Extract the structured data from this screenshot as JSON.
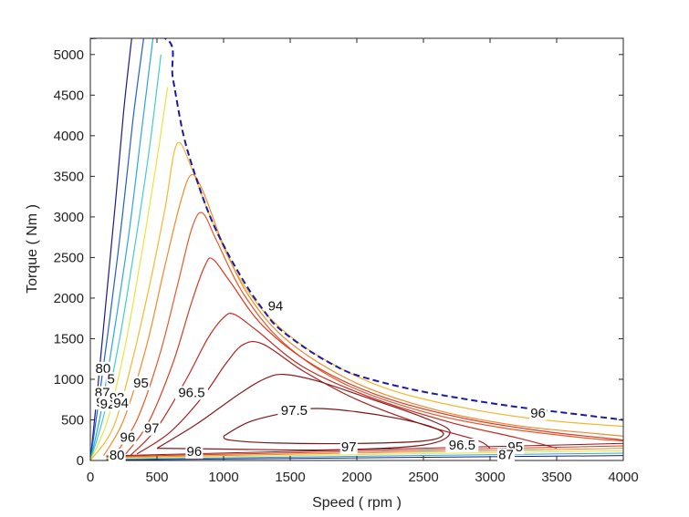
{
  "chart_data": {
    "type": "contour",
    "title": "",
    "xlabel": "Speed ( rpm )",
    "ylabel": "Torque ( Nm )",
    "xlim": [
      0,
      4000
    ],
    "ylim": [
      0,
      5200
    ],
    "xticks": [
      0,
      500,
      1000,
      1500,
      2000,
      2500,
      3000,
      3500,
      4000
    ],
    "yticks": [
      0,
      500,
      1000,
      1500,
      2000,
      2500,
      3000,
      3500,
      4000,
      4500,
      5000
    ],
    "x_tick_labels": [
      "0",
      "500",
      "1000",
      "1500",
      "2000",
      "2500",
      "3000",
      "3500",
      "4000"
    ],
    "y_tick_labels": [
      "0",
      "500",
      "1000",
      "1500",
      "2000",
      "2500",
      "3000",
      "3500",
      "4000",
      "4500",
      "5000"
    ],
    "grid": false,
    "boundary_curve": {
      "style": "dashed",
      "color": "#1a1aa6",
      "x": [
        0,
        560,
        620,
        700,
        800,
        900,
        1000,
        1100,
        1200,
        1300,
        1400,
        1600,
        1800,
        2000,
        2400,
        2800,
        3200,
        3600,
        4000
      ],
      "y": [
        5200,
        5200,
        4700,
        4000,
        3450,
        3000,
        2650,
        2350,
        2080,
        1850,
        1650,
        1400,
        1200,
        1050,
        880,
        760,
        660,
        580,
        500
      ]
    },
    "contours": [
      {
        "level": "80",
        "color": "#1a1a8c",
        "x": [
          0,
          50,
          120,
          190,
          250,
          310
        ],
        "y": [
          0,
          800,
          2000,
          3200,
          4300,
          5200
        ]
      },
      {
        "level": "85",
        "color": "#1f5fd0",
        "x": [
          0,
          60,
          150,
          240,
          320,
          400
        ],
        "y": [
          0,
          700,
          1800,
          3000,
          4200,
          5200
        ]
      },
      {
        "level": "90",
        "color": "#27a9e0",
        "x": [
          0,
          80,
          180,
          290,
          380,
          470
        ],
        "y": [
          0,
          600,
          1600,
          2800,
          4000,
          5200
        ]
      },
      {
        "level": "92",
        "color": "#40d0c0",
        "x": [
          0,
          100,
          220,
          330,
          440,
          530
        ],
        "y": [
          0,
          550,
          1500,
          2600,
          3800,
          5000
        ]
      },
      {
        "level": "93",
        "color": "#e6e63c",
        "x": [
          0,
          130,
          260,
          380,
          490,
          580
        ],
        "y": [
          0,
          500,
          1400,
          2500,
          3600,
          4600
        ]
      },
      {
        "level": "94",
        "color": "#f5b830",
        "x": [
          0,
          170,
          310,
          450,
          560,
          650,
          760,
          900,
          1100,
          1350,
          1700,
          2200,
          2800,
          3400,
          4000
        ],
        "y": [
          0,
          400,
          1200,
          2200,
          3100,
          3900,
          3600,
          3000,
          2300,
          1750,
          1300,
          900,
          650,
          500,
          420
        ]
      },
      {
        "level": "95",
        "color": "#f08a2a",
        "x": [
          100,
          250,
          420,
          560,
          680,
          760,
          850,
          1000,
          1200,
          1500,
          2000,
          2600,
          3200,
          3800,
          4000
        ],
        "y": [
          60,
          500,
          1400,
          2400,
          3200,
          3520,
          3300,
          2650,
          2000,
          1450,
          950,
          620,
          430,
          330,
          300
        ]
      },
      {
        "level": "95.5",
        "color": "#e8582a",
        "x": [
          180,
          350,
          520,
          660,
          760,
          840,
          950,
          1150,
          1450,
          1900,
          2500,
          3100,
          3700,
          4000
        ],
        "y": [
          60,
          500,
          1300,
          2200,
          2850,
          3050,
          2700,
          2050,
          1450,
          950,
          600,
          400,
          280,
          240
        ]
      },
      {
        "level": "96",
        "color": "#d83b25",
        "x": [
          250,
          430,
          620,
          760,
          860,
          920,
          1050,
          1300,
          1700,
          2200,
          2800,
          3400,
          3900,
          4000
        ],
        "y": [
          50,
          450,
          1200,
          1950,
          2400,
          2480,
          2200,
          1650,
          1150,
          780,
          520,
          360,
          270,
          250
        ]
      },
      {
        "level": "96.5",
        "color": "#c42a22",
        "x": [
          300,
          500,
          720,
          880,
          1000,
          1080,
          1250,
          1600,
          2100,
          2700,
          3200,
          3500
        ],
        "y": [
          60,
          400,
          1000,
          1500,
          1760,
          1800,
          1600,
          1150,
          780,
          470,
          280,
          150
        ]
      },
      {
        "level": "97",
        "color": "#a81f20",
        "x": [
          350,
          600,
          850,
          1020,
          1150,
          1300,
          1600,
          2000,
          2500,
          2900,
          3000
        ],
        "y": [
          80,
          350,
          800,
          1200,
          1430,
          1430,
          1100,
          750,
          440,
          250,
          150
        ]
      },
      {
        "level": "97.5",
        "color": "#8b1a1a",
        "x": [
          500,
          800,
          1100,
          1300,
          1450,
          1700,
          2100,
          2500,
          2700,
          2500,
          1800,
          1000,
          500
        ],
        "y": [
          150,
          450,
          800,
          1000,
          1060,
          980,
          760,
          530,
          350,
          190,
          130,
          140,
          150
        ]
      },
      {
        "level": "98",
        "color": "#7a1515",
        "x": [
          1000,
          1200,
          1500,
          1700,
          2000,
          2300,
          2550,
          2650,
          2500,
          2000,
          1400,
          1050,
          1000
        ],
        "y": [
          300,
          480,
          600,
          640,
          600,
          520,
          420,
          320,
          240,
          210,
          215,
          250,
          300
        ]
      }
    ],
    "contour_labels": [
      {
        "text": "80",
        "x": 95,
        "y": 1080
      },
      {
        "text": "5",
        "x": 155,
        "y": 950
      },
      {
        "text": "87",
        "x": 90,
        "y": 780
      },
      {
        "text": "90",
        "x": 100,
        "y": 660
      },
      {
        "text": "92",
        "x": 130,
        "y": 640
      },
      {
        "text": "93",
        "x": 200,
        "y": 720
      },
      {
        "text": "94",
        "x": 230,
        "y": 650
      },
      {
        "text": "95",
        "x": 380,
        "y": 900
      },
      {
        "text": "96.5",
        "x": 760,
        "y": 780
      },
      {
        "text": "97.5",
        "x": 1530,
        "y": 560
      },
      {
        "text": "97",
        "x": 460,
        "y": 340
      },
      {
        "text": "96",
        "x": 280,
        "y": 230
      },
      {
        "text": "80",
        "x": 200,
        "y": 10
      },
      {
        "text": "96",
        "x": 780,
        "y": 55
      },
      {
        "text": "97",
        "x": 1940,
        "y": 110
      },
      {
        "text": "96.5",
        "x": 2790,
        "y": 135
      },
      {
        "text": "96",
        "x": 3360,
        "y": 530
      },
      {
        "text": "94",
        "x": 1390,
        "y": 1850
      },
      {
        "text": "95",
        "x": 3190,
        "y": 110
      },
      {
        "text": "87",
        "x": 3120,
        "y": 15
      }
    ]
  }
}
